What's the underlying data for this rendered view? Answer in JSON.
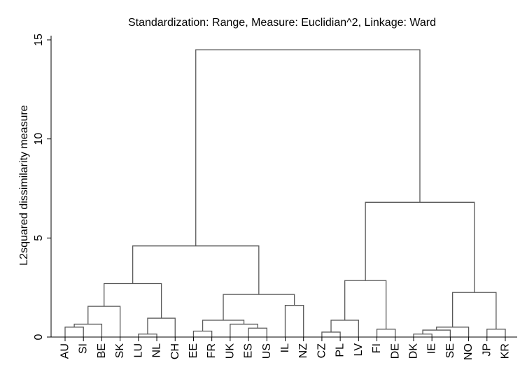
{
  "chart_data": {
    "type": "dendrogram",
    "title": "Standardization: Range, Measure: Euclidian^2, Linkage: Ward",
    "ylabel": "L2squared dissimilarity measure",
    "xlabel": "",
    "ylim": [
      0,
      15
    ],
    "yticks": [
      0,
      5,
      10,
      15
    ],
    "grid": false,
    "leaves": [
      "AU",
      "SI",
      "BE",
      "SK",
      "LU",
      "NL",
      "CH",
      "EE",
      "FR",
      "UK",
      "ES",
      "US",
      "IL",
      "NZ",
      "CZ",
      "PL",
      "LV",
      "FI",
      "DE",
      "DK",
      "IE",
      "SE",
      "NO",
      "JP",
      "KR"
    ],
    "merges": [
      {
        "id": "m1",
        "left": "AU",
        "right": "SI",
        "height": 0.5
      },
      {
        "id": "m2",
        "left": "m1",
        "right": "BE",
        "height": 0.65
      },
      {
        "id": "m3",
        "left": "m2",
        "right": "SK",
        "height": 1.55
      },
      {
        "id": "m4",
        "left": "LU",
        "right": "NL",
        "height": 0.15
      },
      {
        "id": "m5",
        "left": "m4",
        "right": "CH",
        "height": 0.95
      },
      {
        "id": "m6",
        "left": "m3",
        "right": "m5",
        "height": 2.7
      },
      {
        "id": "m7",
        "left": "EE",
        "right": "FR",
        "height": 0.3
      },
      {
        "id": "m8",
        "left": "ES",
        "right": "US",
        "height": 0.45
      },
      {
        "id": "m9",
        "left": "UK",
        "right": "m8",
        "height": 0.65
      },
      {
        "id": "m10",
        "left": "m7",
        "right": "m9",
        "height": 0.85
      },
      {
        "id": "m11",
        "left": "IL",
        "right": "NZ",
        "height": 1.6
      },
      {
        "id": "m12",
        "left": "m10",
        "right": "m11",
        "height": 2.15
      },
      {
        "id": "m13",
        "left": "m6",
        "right": "m12",
        "height": 4.6
      },
      {
        "id": "m14",
        "left": "CZ",
        "right": "PL",
        "height": 0.25
      },
      {
        "id": "m15",
        "left": "m14",
        "right": "LV",
        "height": 0.85
      },
      {
        "id": "m16",
        "left": "FI",
        "right": "DE",
        "height": 0.4
      },
      {
        "id": "m17",
        "left": "m15",
        "right": "m16",
        "height": 2.85
      },
      {
        "id": "m18",
        "left": "DK",
        "right": "IE",
        "height": 0.15
      },
      {
        "id": "m19",
        "left": "m18",
        "right": "SE",
        "height": 0.35
      },
      {
        "id": "m20",
        "left": "m19",
        "right": "NO",
        "height": 0.5
      },
      {
        "id": "m21",
        "left": "JP",
        "right": "KR",
        "height": 0.4
      },
      {
        "id": "m22",
        "left": "m20",
        "right": "m21",
        "height": 2.25
      },
      {
        "id": "m23",
        "left": "m17",
        "right": "m22",
        "height": 6.8
      },
      {
        "id": "m24",
        "left": "m13",
        "right": "m23",
        "height": 14.5
      }
    ],
    "colors": {
      "line": "#595959",
      "axis": "#000000"
    }
  }
}
